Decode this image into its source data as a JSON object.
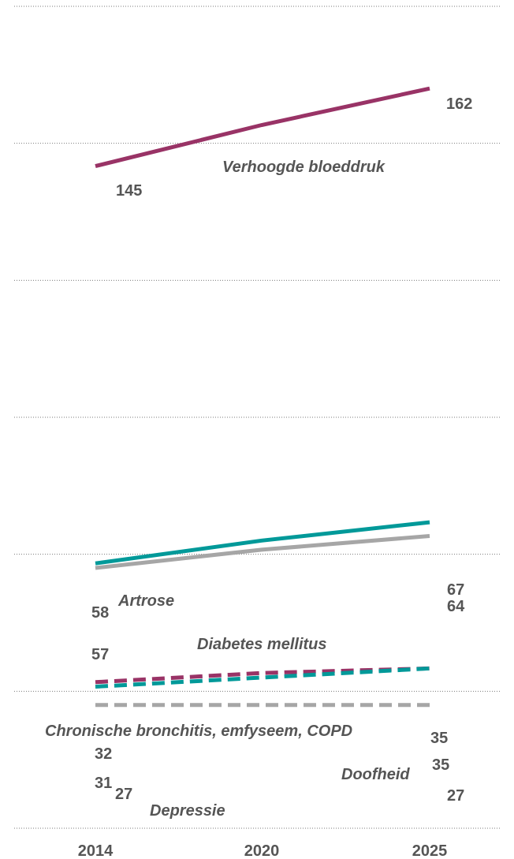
{
  "chart_data": {
    "type": "line",
    "x": [
      "2014",
      "2020",
      "2025"
    ],
    "ylim": [
      0,
      180
    ],
    "grid": true,
    "series": [
      {
        "name": "Verhoogde bloeddruk",
        "values": [
          145,
          154,
          162
        ],
        "color": "#993366",
        "dashed": false,
        "start_label": "145",
        "end_label": "162"
      },
      {
        "name": "Artrose",
        "values": [
          58,
          63,
          67
        ],
        "color": "#009999",
        "dashed": false,
        "start_label": "58",
        "end_label": "67"
      },
      {
        "name": "Diabetes mellitus",
        "values": [
          57,
          61,
          64
        ],
        "color": "#A6A6A6",
        "dashed": false,
        "start_label": "57",
        "end_label": "64"
      },
      {
        "name": "Chronische bronchitis, emfyseem, COPD",
        "values": [
          32,
          34,
          35
        ],
        "color": "#993366",
        "dashed": true,
        "start_label": "32",
        "end_label": "35"
      },
      {
        "name": "Doofheid",
        "values": [
          31,
          33,
          35
        ],
        "color": "#009999",
        "dashed": true,
        "start_label": "31",
        "end_label": "35"
      },
      {
        "name": "Depressie",
        "values": [
          27,
          27,
          27
        ],
        "color": "#A6A6A6",
        "dashed": true,
        "start_label": "27",
        "end_label": "27"
      }
    ]
  }
}
